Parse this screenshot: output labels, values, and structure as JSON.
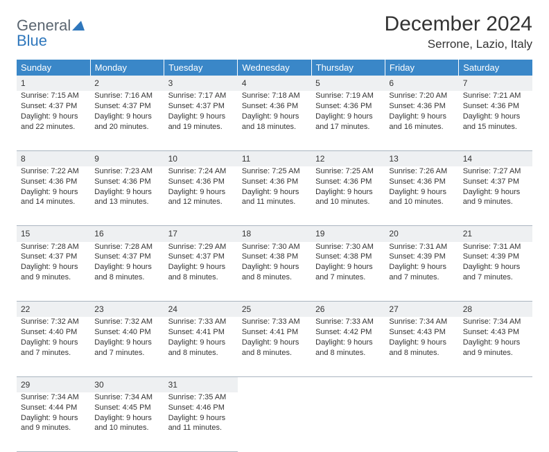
{
  "brand": {
    "general": "General",
    "blue": "Blue"
  },
  "title": "December 2024",
  "location": "Serrone, Lazio, Italy",
  "colors": {
    "header_bg": "#3a87c8",
    "header_text": "#ffffff",
    "daynum_bg": "#eef0f2",
    "grid_line": "#a9b4bf",
    "logo_gray": "#5a6570",
    "logo_blue": "#2f77bc"
  },
  "weekdays": [
    "Sunday",
    "Monday",
    "Tuesday",
    "Wednesday",
    "Thursday",
    "Friday",
    "Saturday"
  ],
  "weeks": [
    [
      {
        "n": "1",
        "sr": "Sunrise: 7:15 AM",
        "ss": "Sunset: 4:37 PM",
        "d1": "Daylight: 9 hours",
        "d2": "and 22 minutes."
      },
      {
        "n": "2",
        "sr": "Sunrise: 7:16 AM",
        "ss": "Sunset: 4:37 PM",
        "d1": "Daylight: 9 hours",
        "d2": "and 20 minutes."
      },
      {
        "n": "3",
        "sr": "Sunrise: 7:17 AM",
        "ss": "Sunset: 4:37 PM",
        "d1": "Daylight: 9 hours",
        "d2": "and 19 minutes."
      },
      {
        "n": "4",
        "sr": "Sunrise: 7:18 AM",
        "ss": "Sunset: 4:36 PM",
        "d1": "Daylight: 9 hours",
        "d2": "and 18 minutes."
      },
      {
        "n": "5",
        "sr": "Sunrise: 7:19 AM",
        "ss": "Sunset: 4:36 PM",
        "d1": "Daylight: 9 hours",
        "d2": "and 17 minutes."
      },
      {
        "n": "6",
        "sr": "Sunrise: 7:20 AM",
        "ss": "Sunset: 4:36 PM",
        "d1": "Daylight: 9 hours",
        "d2": "and 16 minutes."
      },
      {
        "n": "7",
        "sr": "Sunrise: 7:21 AM",
        "ss": "Sunset: 4:36 PM",
        "d1": "Daylight: 9 hours",
        "d2": "and 15 minutes."
      }
    ],
    [
      {
        "n": "8",
        "sr": "Sunrise: 7:22 AM",
        "ss": "Sunset: 4:36 PM",
        "d1": "Daylight: 9 hours",
        "d2": "and 14 minutes."
      },
      {
        "n": "9",
        "sr": "Sunrise: 7:23 AM",
        "ss": "Sunset: 4:36 PM",
        "d1": "Daylight: 9 hours",
        "d2": "and 13 minutes."
      },
      {
        "n": "10",
        "sr": "Sunrise: 7:24 AM",
        "ss": "Sunset: 4:36 PM",
        "d1": "Daylight: 9 hours",
        "d2": "and 12 minutes."
      },
      {
        "n": "11",
        "sr": "Sunrise: 7:25 AM",
        "ss": "Sunset: 4:36 PM",
        "d1": "Daylight: 9 hours",
        "d2": "and 11 minutes."
      },
      {
        "n": "12",
        "sr": "Sunrise: 7:25 AM",
        "ss": "Sunset: 4:36 PM",
        "d1": "Daylight: 9 hours",
        "d2": "and 10 minutes."
      },
      {
        "n": "13",
        "sr": "Sunrise: 7:26 AM",
        "ss": "Sunset: 4:36 PM",
        "d1": "Daylight: 9 hours",
        "d2": "and 10 minutes."
      },
      {
        "n": "14",
        "sr": "Sunrise: 7:27 AM",
        "ss": "Sunset: 4:37 PM",
        "d1": "Daylight: 9 hours",
        "d2": "and 9 minutes."
      }
    ],
    [
      {
        "n": "15",
        "sr": "Sunrise: 7:28 AM",
        "ss": "Sunset: 4:37 PM",
        "d1": "Daylight: 9 hours",
        "d2": "and 9 minutes."
      },
      {
        "n": "16",
        "sr": "Sunrise: 7:28 AM",
        "ss": "Sunset: 4:37 PM",
        "d1": "Daylight: 9 hours",
        "d2": "and 8 minutes."
      },
      {
        "n": "17",
        "sr": "Sunrise: 7:29 AM",
        "ss": "Sunset: 4:37 PM",
        "d1": "Daylight: 9 hours",
        "d2": "and 8 minutes."
      },
      {
        "n": "18",
        "sr": "Sunrise: 7:30 AM",
        "ss": "Sunset: 4:38 PM",
        "d1": "Daylight: 9 hours",
        "d2": "and 8 minutes."
      },
      {
        "n": "19",
        "sr": "Sunrise: 7:30 AM",
        "ss": "Sunset: 4:38 PM",
        "d1": "Daylight: 9 hours",
        "d2": "and 7 minutes."
      },
      {
        "n": "20",
        "sr": "Sunrise: 7:31 AM",
        "ss": "Sunset: 4:39 PM",
        "d1": "Daylight: 9 hours",
        "d2": "and 7 minutes."
      },
      {
        "n": "21",
        "sr": "Sunrise: 7:31 AM",
        "ss": "Sunset: 4:39 PM",
        "d1": "Daylight: 9 hours",
        "d2": "and 7 minutes."
      }
    ],
    [
      {
        "n": "22",
        "sr": "Sunrise: 7:32 AM",
        "ss": "Sunset: 4:40 PM",
        "d1": "Daylight: 9 hours",
        "d2": "and 7 minutes."
      },
      {
        "n": "23",
        "sr": "Sunrise: 7:32 AM",
        "ss": "Sunset: 4:40 PM",
        "d1": "Daylight: 9 hours",
        "d2": "and 7 minutes."
      },
      {
        "n": "24",
        "sr": "Sunrise: 7:33 AM",
        "ss": "Sunset: 4:41 PM",
        "d1": "Daylight: 9 hours",
        "d2": "and 8 minutes."
      },
      {
        "n": "25",
        "sr": "Sunrise: 7:33 AM",
        "ss": "Sunset: 4:41 PM",
        "d1": "Daylight: 9 hours",
        "d2": "and 8 minutes."
      },
      {
        "n": "26",
        "sr": "Sunrise: 7:33 AM",
        "ss": "Sunset: 4:42 PM",
        "d1": "Daylight: 9 hours",
        "d2": "and 8 minutes."
      },
      {
        "n": "27",
        "sr": "Sunrise: 7:34 AM",
        "ss": "Sunset: 4:43 PM",
        "d1": "Daylight: 9 hours",
        "d2": "and 8 minutes."
      },
      {
        "n": "28",
        "sr": "Sunrise: 7:34 AM",
        "ss": "Sunset: 4:43 PM",
        "d1": "Daylight: 9 hours",
        "d2": "and 9 minutes."
      }
    ],
    [
      {
        "n": "29",
        "sr": "Sunrise: 7:34 AM",
        "ss": "Sunset: 4:44 PM",
        "d1": "Daylight: 9 hours",
        "d2": "and 9 minutes."
      },
      {
        "n": "30",
        "sr": "Sunrise: 7:34 AM",
        "ss": "Sunset: 4:45 PM",
        "d1": "Daylight: 9 hours",
        "d2": "and 10 minutes."
      },
      {
        "n": "31",
        "sr": "Sunrise: 7:35 AM",
        "ss": "Sunset: 4:46 PM",
        "d1": "Daylight: 9 hours",
        "d2": "and 11 minutes."
      },
      null,
      null,
      null,
      null
    ]
  ]
}
